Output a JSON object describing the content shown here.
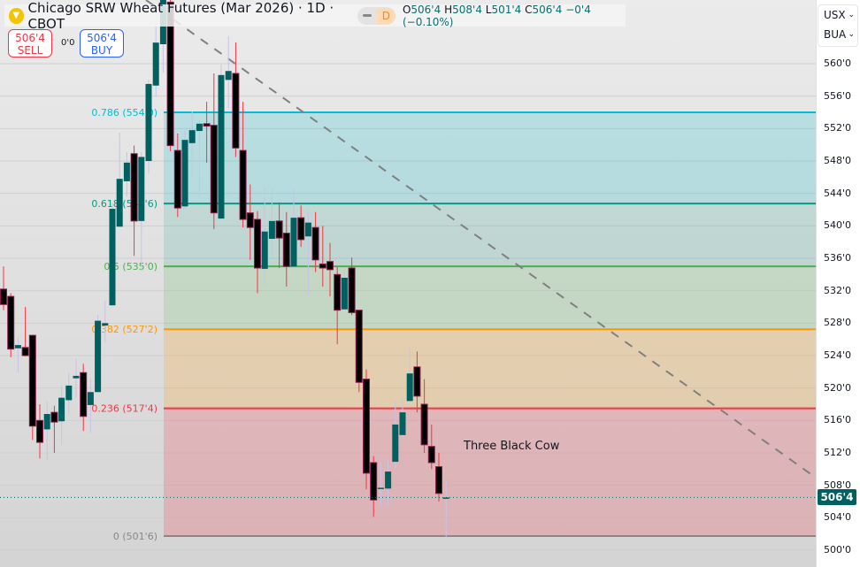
{
  "header": {
    "symbol_title": "Chicago SRW Wheat Futures (Mar 2026) · 1D · CBOT",
    "interval_badge": "D",
    "open_label": "O",
    "open": "506'4",
    "high_label": "H",
    "high": "508'4",
    "low_label": "L",
    "low": "501'4",
    "close_label": "C",
    "close": "506'4",
    "change": "−0'4 (−0.10%)"
  },
  "trade": {
    "sell_price": "506'4",
    "sell_label": "SELL",
    "buy_price": "506'4",
    "buy_label": "BUY",
    "spread": "0'0"
  },
  "axis": {
    "currency": "USX",
    "unit": "BUA",
    "ticks": [
      "560'0",
      "556'0",
      "552'0",
      "548'0",
      "544'0",
      "540'0",
      "536'0",
      "532'0",
      "528'0",
      "524'0",
      "520'0",
      "516'0",
      "512'0",
      "508'0",
      "504'0",
      "500'0"
    ],
    "last_price": "506'4",
    "last_price_value": 506.5
  },
  "colors": {
    "up": "#00605f",
    "down_body": "#000000",
    "down_border": "#8b1a4a",
    "down_wick": "#f23645",
    "up_wick": "#c9c3e6",
    "last_price": "#00605f"
  },
  "annotation": {
    "text": "Three Black Cow"
  },
  "fib_levels": [
    {
      "ratio": 0,
      "price": 501.75,
      "label": "0 (501'6)",
      "color": "#888888",
      "fill": "rgba(200,200,200,0)"
    },
    {
      "ratio": 0.236,
      "price": 517.5,
      "label": "0.236 (517'4)",
      "color": "#f23645",
      "fill": "rgba(242,54,69,0.22)"
    },
    {
      "ratio": 0.382,
      "price": 527.25,
      "label": "0.382 (527'2)",
      "color": "#ff9800",
      "fill": "rgba(255,152,0,0.2)"
    },
    {
      "ratio": 0.5,
      "price": 535.0,
      "label": "0.5 (535'0)",
      "color": "#4caf50",
      "fill": "rgba(76,175,80,0.18)"
    },
    {
      "ratio": 0.618,
      "price": 542.75,
      "label": "0.618 (542'6)",
      "color": "#089981",
      "fill": "rgba(8,153,129,0.15)"
    },
    {
      "ratio": 0.786,
      "price": 554.0,
      "label": "0.786 (554'0)",
      "color": "#00bcd4",
      "fill": "rgba(0,188,212,0.2)"
    }
  ],
  "chart_data": {
    "type": "candlestick",
    "ylim": [
      500,
      560
    ],
    "candles_ohlc": [
      [
        532.2,
        535.0,
        529.6,
        530.3
      ],
      [
        531.3,
        531.7,
        523.8,
        524.8
      ],
      [
        524.9,
        526.3,
        521.9,
        525.3
      ],
      [
        525.0,
        530.0,
        523.9,
        524.0
      ],
      [
        526.5,
        526.5,
        513.6,
        515.3
      ],
      [
        516.0,
        518.0,
        511.3,
        513.3
      ],
      [
        514.9,
        518.3,
        511.1,
        516.8
      ],
      [
        517.0,
        517.8,
        512.0,
        515.8
      ],
      [
        515.9,
        520.3,
        513.0,
        518.8
      ],
      [
        518.5,
        521.8,
        516.9,
        520.3
      ],
      [
        521.2,
        523.6,
        518.8,
        521.5
      ],
      [
        521.9,
        523.0,
        514.7,
        516.5
      ],
      [
        517.9,
        521.1,
        514.4,
        519.5
      ],
      [
        519.5,
        529.0,
        519.4,
        528.3
      ],
      [
        527.7,
        530.8,
        525.6,
        528.0
      ],
      [
        530.2,
        542.8,
        530.2,
        542.1
      ],
      [
        539.9,
        551.5,
        539.9,
        545.8
      ],
      [
        545.5,
        549.1,
        543.6,
        547.8
      ],
      [
        548.9,
        549.9,
        536.3,
        540.6
      ],
      [
        540.6,
        549.1,
        534.4,
        548.5
      ],
      [
        548.0,
        558.0,
        546.4,
        557.5
      ],
      [
        557.3,
        565.7,
        555.9,
        562.6
      ],
      [
        562.4,
        568.0,
        558.9,
        567.9
      ],
      [
        567.6,
        568.0,
        549.2,
        549.9
      ],
      [
        549.3,
        551.4,
        541.1,
        542.2
      ],
      [
        542.4,
        551.8,
        542.1,
        550.6
      ],
      [
        550.2,
        554.1,
        546.0,
        551.8
      ],
      [
        551.7,
        553.1,
        543.5,
        552.6
      ],
      [
        552.6,
        555.3,
        547.8,
        552.3
      ],
      [
        552.4,
        558.8,
        539.6,
        541.6
      ],
      [
        540.9,
        559.9,
        540.9,
        558.6
      ],
      [
        558.0,
        563.4,
        554.5,
        559.1
      ],
      [
        558.8,
        562.6,
        548.5,
        549.6
      ],
      [
        549.3,
        555.3,
        539.8,
        540.8
      ],
      [
        541.6,
        545.1,
        535.8,
        539.8
      ],
      [
        540.8,
        541.8,
        531.7,
        534.8
      ],
      [
        534.7,
        544.8,
        532.6,
        539.3
      ],
      [
        538.4,
        544.8,
        535.9,
        540.6
      ],
      [
        540.6,
        542.9,
        534.8,
        538.5
      ],
      [
        539.1,
        541.7,
        532.5,
        535.0
      ],
      [
        535.0,
        544.6,
        535.0,
        541.0
      ],
      [
        541.0,
        542.5,
        537.4,
        538.3
      ],
      [
        538.7,
        541.8,
        531.5,
        540.4
      ],
      [
        539.8,
        541.7,
        534.3,
        535.8
      ],
      [
        535.3,
        540.0,
        532.5,
        534.8
      ],
      [
        535.6,
        537.9,
        531.3,
        534.6
      ],
      [
        534.0,
        534.9,
        525.4,
        529.6
      ],
      [
        529.7,
        534.8,
        529.7,
        533.6
      ],
      [
        534.8,
        536.1,
        529.0,
        529.3
      ],
      [
        529.6,
        529.6,
        519.5,
        520.7
      ],
      [
        521.1,
        522.3,
        507.5,
        509.5
      ],
      [
        510.8,
        511.6,
        504.1,
        506.2
      ],
      [
        507.7,
        510.8,
        505.5,
        507.7
      ],
      [
        507.6,
        511.2,
        505.5,
        509.7
      ],
      [
        510.9,
        518.3,
        510.0,
        515.5
      ],
      [
        514.2,
        518.8,
        513.7,
        517.0
      ],
      [
        518.4,
        525.0,
        518.0,
        521.8
      ],
      [
        522.6,
        524.5,
        517.0,
        519.0
      ],
      [
        518.0,
        521.1,
        512.0,
        513.0
      ],
      [
        512.8,
        515.5,
        510.0,
        510.8
      ],
      [
        510.3,
        512.0,
        506.0,
        507.0
      ],
      [
        506.5,
        508.5,
        501.5,
        506.5
      ]
    ]
  }
}
